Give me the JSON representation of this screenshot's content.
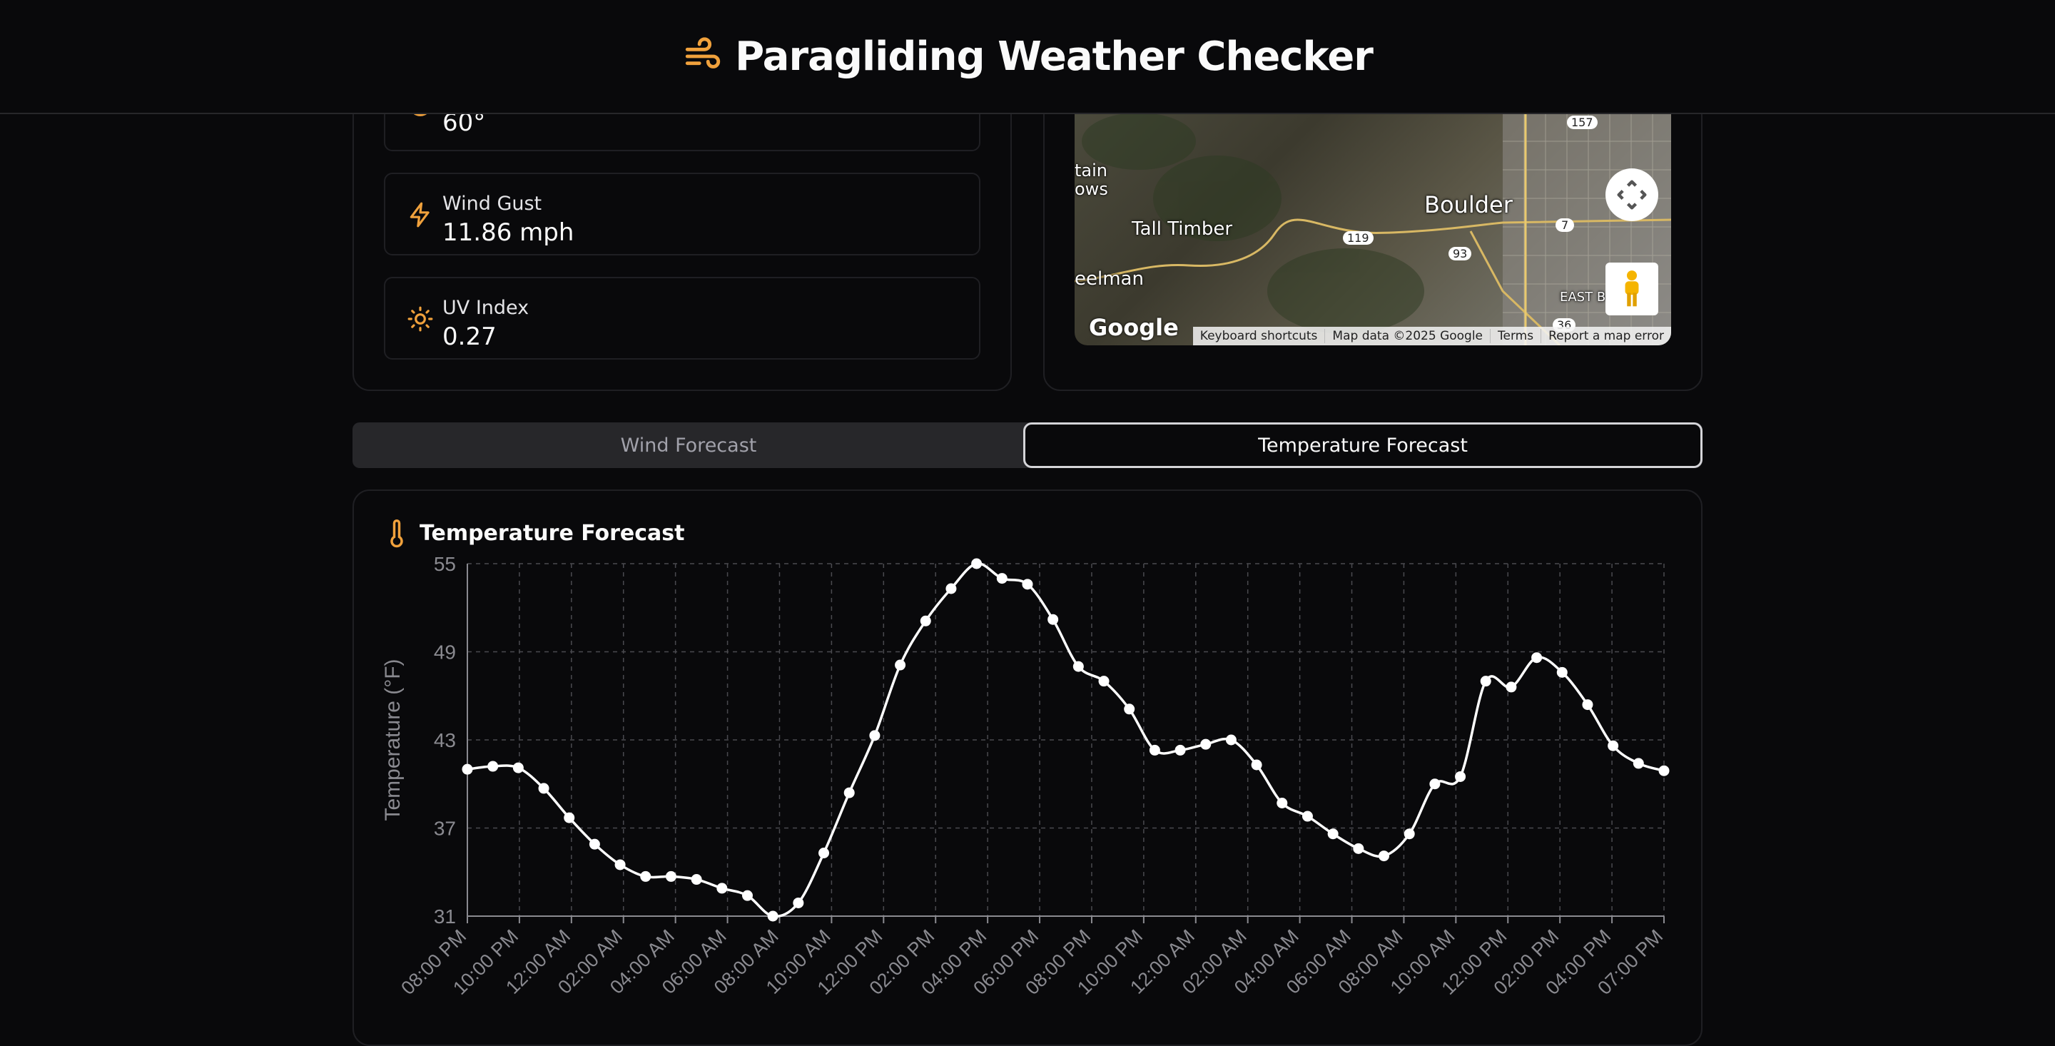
{
  "app": {
    "title": "Paragliding Weather Checker",
    "logo_icon": "wind-icon",
    "accent_color": "#f0a13c"
  },
  "conditions": {
    "partial_value": "60°",
    "items": [
      {
        "label": "Wind Gust",
        "value": "11.86 mph",
        "icon": "lightning-icon"
      },
      {
        "label": "UV Index",
        "value": "0.27",
        "icon": "sun-icon"
      }
    ]
  },
  "map": {
    "labels": {
      "boulder": "Boulder",
      "tall_timber": "Tall Timber",
      "mountain_meadows": "tain\nows",
      "wheelman": "eelman",
      "east_b": "EAST B"
    },
    "route_shields": [
      "157",
      "7",
      "119",
      "93",
      "36"
    ],
    "logo": "Google",
    "attribution": [
      "Keyboard shortcuts",
      "Map data ©2025 Google",
      "Terms",
      "Report a map error"
    ]
  },
  "tabs": [
    {
      "label": "Wind Forecast",
      "active": false
    },
    {
      "label": "Temperature Forecast",
      "active": true
    }
  ],
  "chart_panel": {
    "title": "Temperature Forecast",
    "icon": "thermometer-icon"
  },
  "chart_data": {
    "type": "line",
    "title": "Temperature Forecast",
    "xlabel": "",
    "ylabel": "Temperature (°F)",
    "ylim": [
      31,
      55
    ],
    "yticks": [
      31,
      37,
      43,
      49,
      55
    ],
    "grid": true,
    "x_tick_labels": [
      "08:00 PM",
      "10:00 PM",
      "12:00 AM",
      "02:00 AM",
      "04:00 AM",
      "06:00 AM",
      "08:00 AM",
      "10:00 AM",
      "12:00 PM",
      "02:00 PM",
      "04:00 PM",
      "06:00 PM",
      "08:00 PM",
      "10:00 PM",
      "12:00 AM",
      "02:00 AM",
      "04:00 AM",
      "06:00 AM",
      "08:00 AM",
      "10:00 AM",
      "12:00 PM",
      "02:00 PM",
      "04:00 PM",
      "07:00 PM"
    ],
    "series": [
      {
        "values": [
          41.0,
          41.2,
          41.1,
          39.7,
          37.7,
          35.9,
          34.5,
          33.7,
          33.7,
          33.5,
          32.9,
          32.4,
          31.0,
          31.9,
          35.3,
          39.4,
          43.3,
          48.1,
          51.1,
          53.3,
          55.0,
          54.0,
          53.6,
          51.2,
          48.0,
          47.0,
          45.1,
          42.3,
          42.3,
          42.7,
          43.0,
          41.3,
          38.7,
          37.8,
          36.6,
          35.6,
          35.1,
          36.6,
          40.0,
          40.5,
          47.0,
          46.6,
          48.6,
          47.6,
          45.4,
          42.6,
          41.4,
          40.9
        ],
        "color": "#ffffff"
      }
    ]
  }
}
